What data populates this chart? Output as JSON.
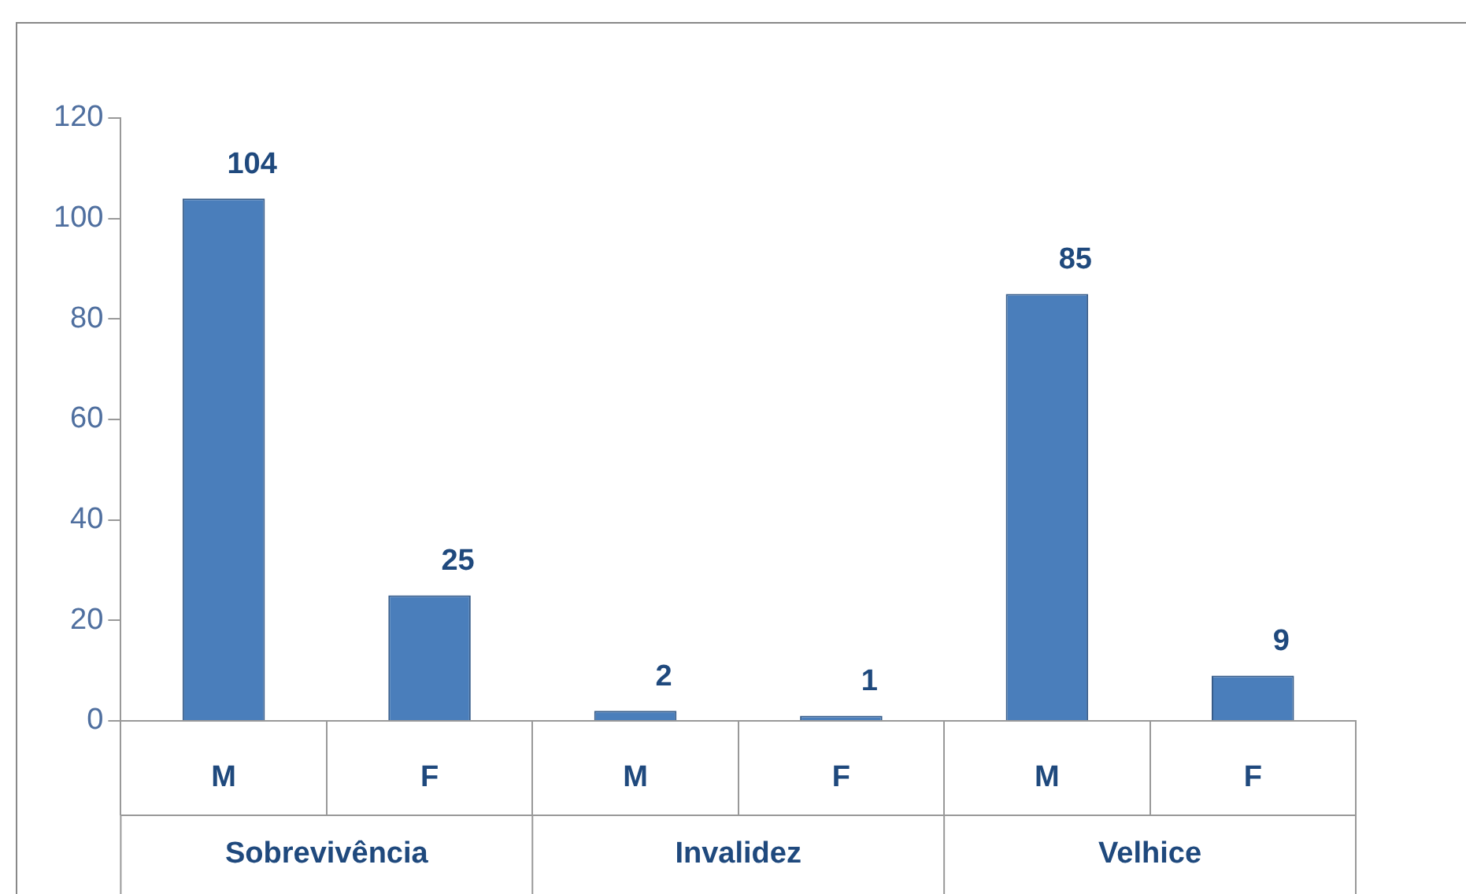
{
  "chart_data": {
    "type": "bar",
    "categories": [
      "M",
      "F",
      "M",
      "F",
      "M",
      "F"
    ],
    "values": [
      104,
      25,
      2,
      1,
      85,
      9
    ],
    "color": "#4a7ebb",
    "ylim": [
      0,
      120
    ],
    "yticks": [
      0,
      20,
      40,
      60,
      80,
      100,
      120
    ],
    "grid": false,
    "legend": false,
    "data_labels": true,
    "annotations": [
      "Sobrevivência",
      "Invalidez",
      "Velhice"
    ]
  }
}
